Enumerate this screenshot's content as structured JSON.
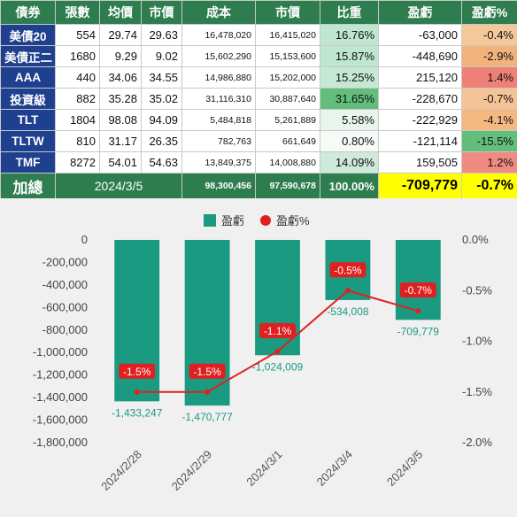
{
  "table": {
    "headers": [
      "債券",
      "張數",
      "均價",
      "市價",
      "成本",
      "市價",
      "比重",
      "盈虧",
      "盈虧%"
    ],
    "rows": [
      {
        "name": "美債20",
        "qty": "554",
        "avg": "29.74",
        "price": "29.63",
        "cost": "16,478,020",
        "value": "16,415,020",
        "weight": "16.76%",
        "pnl": "-63,000",
        "pnl_pct": "-0.4%"
      },
      {
        "name": "美債正二",
        "qty": "1680",
        "avg": "9.29",
        "price": "9.02",
        "cost": "15,602,290",
        "value": "15,153,600",
        "weight": "15.87%",
        "pnl": "-448,690",
        "pnl_pct": "-2.9%"
      },
      {
        "name": "AAA",
        "qty": "440",
        "avg": "34.06",
        "price": "34.55",
        "cost": "14,986,880",
        "value": "15,202,000",
        "weight": "15.25%",
        "pnl": "215,120",
        "pnl_pct": "1.4%"
      },
      {
        "name": "投資級",
        "qty": "882",
        "avg": "35.28",
        "price": "35.02",
        "cost": "31,116,310",
        "value": "30,887,640",
        "weight": "31.65%",
        "pnl": "-228,670",
        "pnl_pct": "-0.7%"
      },
      {
        "name": "TLT",
        "qty": "1804",
        "avg": "98.08",
        "price": "94.09",
        "cost": "5,484,818",
        "value": "5,261,889",
        "weight": "5.58%",
        "pnl": "-222,929",
        "pnl_pct": "-4.1%"
      },
      {
        "name": "TLTW",
        "qty": "810",
        "avg": "31.17",
        "price": "26.35",
        "cost": "782,763",
        "value": "661,649",
        "weight": "0.80%",
        "pnl": "-121,114",
        "pnl_pct": "-15.5%"
      },
      {
        "name": "TMF",
        "qty": "8272",
        "avg": "54.01",
        "price": "54.63",
        "cost": "13,849,375",
        "value": "14,008,880",
        "weight": "14.09%",
        "pnl": "159,505",
        "pnl_pct": "1.2%"
      }
    ],
    "weight_colors": [
      "#bfe6cf",
      "#bfe6cf",
      "#c6e9d4",
      "#63be7b",
      "#e8f5ed",
      "#f7fbf8",
      "#cdeada"
    ],
    "pnl_pct_colors": [
      "#f5c89a",
      "#f2b27c",
      "#ee8076",
      "#f5c396",
      "#f4b981",
      "#63be7b",
      "#ef8b80"
    ],
    "total": {
      "label": "加總",
      "date": "2024/3/5",
      "cost": "98,300,456",
      "value": "97,590,678",
      "weight": "100.00%",
      "pnl": "-709,779",
      "pnl_pct": "-0.7%"
    }
  },
  "chart_data": {
    "type": "bar",
    "categories": [
      "2024/2/28",
      "2024/2/29",
      "2024/3/1",
      "2024/3/4",
      "2024/3/5"
    ],
    "series": [
      {
        "name": "盈虧",
        "type": "bar",
        "values": [
          -1433247,
          -1470777,
          -1024009,
          -534008,
          -709779
        ],
        "labels": [
          "-1,433,247",
          "-1,470,777",
          "-1,024,009",
          "-534,008",
          "-709,779"
        ],
        "color": "#1a9a80"
      },
      {
        "name": "盈虧%",
        "type": "line",
        "axis": "right",
        "values": [
          -1.5,
          -1.5,
          -1.1,
          -0.5,
          -0.7
        ],
        "labels": [
          "-1.5%",
          "-1.5%",
          "-1.1%",
          "-0.5%",
          "-0.7%"
        ],
        "color": "#e02020"
      }
    ],
    "y_left": {
      "range": [
        -1800000,
        0
      ],
      "ticks": [
        "0",
        "-200,000",
        "-400,000",
        "-600,000",
        "-800,000",
        "-1,000,000",
        "-1,200,000",
        "-1,400,000",
        "-1,600,000",
        "-1,800,000"
      ]
    },
    "y_right": {
      "range": [
        -2.0,
        0
      ],
      "ticks": [
        "0.0%",
        "-0.5%",
        "-1.0%",
        "-1.5%",
        "-2.0%"
      ]
    },
    "legend": "top",
    "background": "#f0f0f0"
  }
}
